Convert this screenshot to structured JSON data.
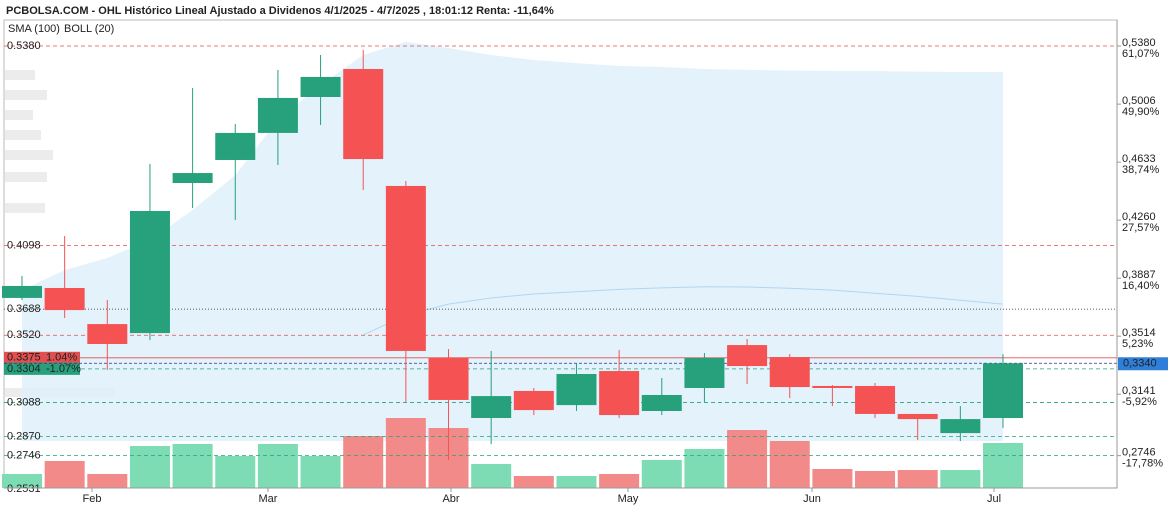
{
  "chart_data": {
    "type": "candlestick",
    "title": "PCBOLSA.COM - OHL Histórico Lineal Ajustado a Dividenos 4/1/2025 - 4/7/2025 , 18:01:12 Renta: -11,64%",
    "indicators": [
      {
        "name": "SMA (100)",
        "color": "#8fc3ea"
      },
      {
        "name": "BOLL (20)",
        "color": "#c8c8c8"
      }
    ],
    "up_color": "#26a17b",
    "down_color": "#f55353",
    "volume_up_color": "#7ddcb3",
    "volume_down_color": "#f28a8a",
    "band_color": "#dff0fb",
    "ylim": [
      0.2538,
      0.5547
    ],
    "open": [
      0.376,
      0.3824,
      0.3592,
      0.3534,
      0.4499,
      0.4647,
      0.4821,
      0.5052,
      0.5232,
      0.448,
      0.3374,
      0.2988,
      0.3162,
      0.3071,
      0.329,
      0.3033,
      0.3181,
      0.3457,
      0.338,
      0.3194,
      0.3194,
      0.3014,
      0.2891,
      0.2988
    ],
    "high": [
      0.3901,
      0.4158,
      0.3747,
      0.4621,
      0.511,
      0.4878,
      0.5226,
      0.5322,
      0.5354,
      0.4512,
      0.3431,
      0.3419,
      0.3181,
      0.3341,
      0.3425,
      0.3245,
      0.3406,
      0.3496,
      0.3399,
      0.32,
      0.3213,
      0.3014,
      0.3065,
      0.3399
    ],
    "low": [
      0.3747,
      0.3631,
      0.3296,
      0.3489,
      0.4338,
      0.4261,
      0.4615,
      0.4872,
      0.4454,
      0.3091,
      0.2718,
      0.282,
      0.3007,
      0.3033,
      0.2988,
      0.3007,
      0.3091,
      0.3206,
      0.3116,
      0.3065,
      0.2988,
      0.2846,
      0.284,
      0.2923
    ],
    "close": [
      0.3837,
      0.3682,
      0.3464,
      0.4319,
      0.4563,
      0.4821,
      0.5046,
      0.5181,
      0.4653,
      0.3419,
      0.3104,
      0.3129,
      0.3039,
      0.3271,
      0.3007,
      0.3136,
      0.3374,
      0.3322,
      0.3187,
      0.3181,
      0.3014,
      0.2981,
      0.2981,
      0.334
    ],
    "volume": [
      14,
      27,
      14,
      42,
      44,
      32,
      44,
      32,
      52,
      70,
      60,
      24,
      12,
      12,
      14,
      28,
      39,
      58,
      47,
      19,
      17,
      18,
      18,
      45
    ],
    "boll_upper": [
      0.3811,
      0.3939,
      0.4017,
      0.4132,
      0.4325,
      0.455,
      0.4904,
      0.5129,
      0.5322,
      0.5406,
      0.5367,
      0.5322,
      0.529,
      0.527,
      0.5251,
      0.5245,
      0.5232,
      0.5226,
      0.5222,
      0.5219,
      0.5219,
      0.5215,
      0.5213,
      0.5213
    ],
    "boll_lower": [
      0.284,
      0.284,
      0.284,
      0.284,
      0.284,
      0.284,
      0.284,
      0.284,
      0.284,
      0.284,
      0.284,
      0.284,
      0.284,
      0.284,
      0.284,
      0.284,
      0.284,
      0.284,
      0.284,
      0.284,
      0.284,
      0.284,
      0.284,
      0.284
    ],
    "sma": [
      null,
      null,
      null,
      null,
      null,
      null,
      null,
      null,
      0.3522,
      0.365,
      0.372,
      0.376,
      0.3785,
      0.38,
      0.3815,
      0.3825,
      0.3832,
      0.383,
      0.3822,
      0.381,
      0.379,
      0.377,
      0.3745,
      0.372
    ],
    "months": [
      "Feb",
      "Mar",
      "Abr",
      "May",
      "Jun",
      "Jul"
    ],
    "yticks": [
      {
        "value": 0.538,
        "label": "0,5380",
        "pct": "61,07%"
      },
      {
        "value": 0.5006,
        "label": "0,5006",
        "pct": "49,90%"
      },
      {
        "value": 0.4633,
        "label": "0,4633",
        "pct": "38,74%"
      },
      {
        "value": 0.426,
        "label": "0,4260",
        "pct": "27,57%"
      },
      {
        "value": 0.3887,
        "label": "0,3887",
        "pct": "16,40%"
      },
      {
        "value": 0.3514,
        "label": "0,3514",
        "pct": "5,23%"
      },
      {
        "value": 0.3141,
        "label": "0,3141",
        "pct": "-5,92%"
      },
      {
        "value": 0.2746,
        "label": "0,2746",
        "pct": "-17,78%"
      }
    ],
    "last_price": {
      "value": 0.334,
      "label": "0,3340",
      "color": "#2f7fd8"
    },
    "levels": [
      {
        "value": 0.538,
        "label": "0.5380",
        "color": "#e05050",
        "style": "dashed"
      },
      {
        "value": 0.4098,
        "label": "0.4098",
        "color": "#e05050",
        "style": "dashed"
      },
      {
        "value": 0.3688,
        "label": "0.3688",
        "color": "#222222",
        "style": "dotted"
      },
      {
        "value": 0.352,
        "label": "0.3520",
        "color": "#e05050",
        "style": "dashed"
      },
      {
        "value": 0.3375,
        "label": "0.3375",
        "pct": "1.04%",
        "color": "#e05050",
        "style": "solid",
        "boxed": true
      },
      {
        "value": 0.3304,
        "label": "0.3304",
        "pct": "-1.07%",
        "color": "#26a17b",
        "style": "dashed",
        "boxed": true
      },
      {
        "value": 0.3088,
        "label": "0.3088",
        "color": "#26a17b",
        "style": "dashed"
      },
      {
        "value": 0.287,
        "label": "0.2870",
        "color": "#26a17b",
        "style": "dashed"
      },
      {
        "value": 0.2746,
        "label": "0.2746",
        "color": "#26a17b",
        "style": "dashed"
      },
      {
        "value": 0.2531,
        "label": "0.2531",
        "color": "#26a17b",
        "style": "none"
      }
    ]
  }
}
